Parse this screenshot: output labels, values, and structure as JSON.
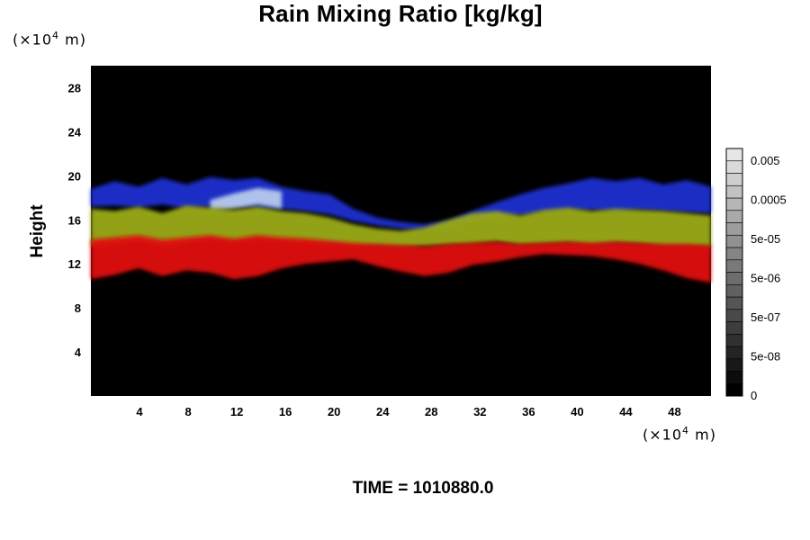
{
  "chart_data": {
    "type": "heatmap",
    "title": "Rain Mixing Ratio [kg/kg]",
    "ylabel": "Height",
    "y_unit": {
      "prefix": "(×10",
      "exp": "4",
      "suffix": " m)"
    },
    "x_unit": {
      "prefix": "(×10",
      "exp": "4",
      "suffix": " m)"
    },
    "time_label": "TIME = 1010880.0",
    "xlim": [
      0,
      51
    ],
    "ylim": [
      0,
      30
    ],
    "x_ticks": [
      "4",
      "8",
      "12",
      "16",
      "20",
      "24",
      "28",
      "32",
      "36",
      "40",
      "44",
      "48"
    ],
    "y_ticks": [
      "4",
      "8",
      "12",
      "16",
      "20",
      "24",
      "28"
    ],
    "background_color": "#000000",
    "layers": [
      {
        "color": "#1f2fd0",
        "top": [
          18.8,
          19.5,
          19.0,
          19.8,
          19.2,
          19.9,
          19.6,
          19.8,
          19.0,
          18.6,
          18.3,
          17.0,
          16.2,
          15.8,
          15.6,
          15.9,
          16.8,
          17.6,
          18.3,
          18.9,
          19.3,
          19.8,
          19.5,
          19.8,
          19.2,
          19.6,
          19.0
        ],
        "bottom": [
          17.2,
          17.3,
          17.1,
          17.4,
          17.0,
          17.2,
          17.3,
          17.1,
          17.0,
          16.8,
          16.5,
          15.9,
          15.5,
          15.2,
          15.0,
          15.3,
          15.8,
          16.2,
          16.4,
          16.6,
          16.8,
          16.9,
          16.7,
          16.9,
          16.8,
          16.7,
          16.6
        ]
      },
      {
        "color": "#c8dcf0",
        "top": [
          0,
          0,
          0,
          0,
          0,
          17.8,
          18.4,
          18.9,
          18.6,
          0,
          0,
          0,
          0,
          0,
          0,
          0,
          0,
          0,
          0,
          0,
          0,
          0,
          0,
          0,
          0,
          0,
          0
        ],
        "bottom": [
          0,
          0,
          0,
          0,
          0,
          16.8,
          17.0,
          17.4,
          17.0,
          0,
          0,
          0,
          0,
          0,
          0,
          0,
          0,
          0,
          0,
          0,
          0,
          0,
          0,
          0,
          0,
          0,
          0
        ]
      },
      {
        "color": "#9aaa14",
        "top": [
          17.0,
          16.8,
          17.2,
          16.6,
          17.3,
          17.1,
          16.9,
          17.2,
          16.8,
          16.6,
          16.2,
          15.6,
          15.2,
          15.0,
          15.3,
          16.0,
          16.6,
          16.8,
          16.4,
          16.9,
          17.1,
          16.8,
          17.0,
          16.9,
          16.8,
          16.6,
          16.4
        ],
        "bottom": [
          13.6,
          13.8,
          14.0,
          13.6,
          13.9,
          14.2,
          13.9,
          14.2,
          14.0,
          13.9,
          13.8,
          13.6,
          13.6,
          13.5,
          13.6,
          13.7,
          13.8,
          14.0,
          13.7,
          13.8,
          13.9,
          13.7,
          13.9,
          13.8,
          13.6,
          13.6,
          13.5
        ]
      },
      {
        "color": "#e01010",
        "top": [
          14.2,
          14.4,
          14.6,
          14.2,
          14.4,
          14.6,
          14.3,
          14.6,
          14.4,
          14.3,
          14.1,
          13.9,
          13.8,
          13.7,
          13.6,
          13.8,
          13.9,
          14.0,
          13.8,
          13.9,
          14.0,
          13.9,
          14.0,
          13.9,
          13.8,
          13.8,
          13.7
        ],
        "bottom": [
          10.6,
          11.0,
          11.6,
          10.9,
          11.4,
          11.2,
          10.6,
          10.9,
          11.6,
          12.0,
          12.2,
          12.4,
          11.8,
          11.3,
          10.9,
          11.2,
          11.9,
          12.2,
          12.6,
          12.9,
          12.8,
          12.7,
          12.4,
          12.0,
          11.4,
          10.7,
          10.3
        ]
      }
    ],
    "colorbar": {
      "labels": [
        "0.005",
        "0.0005",
        "5e-05",
        "5e-06",
        "5e-07",
        "5e-08",
        "0"
      ],
      "levels": 20,
      "color_low": "#000000",
      "color_high": "#e6e6e6"
    }
  }
}
